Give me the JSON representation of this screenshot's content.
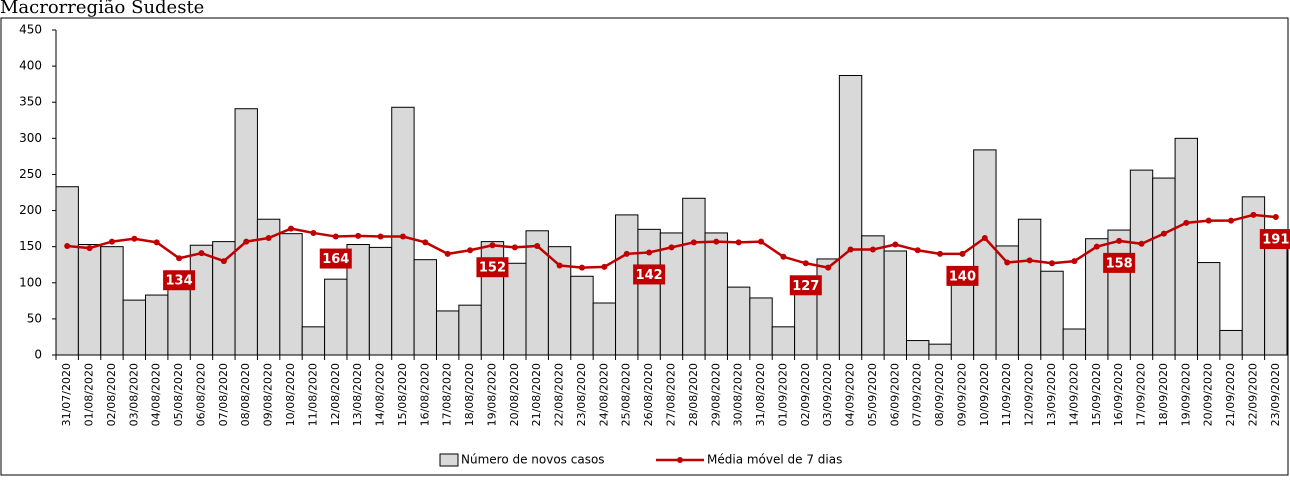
{
  "chart_data": {
    "type": "bar_line",
    "title": "Macrorregião Sudeste",
    "categories": [
      "31/07/2020",
      "01/08/2020",
      "02/08/2020",
      "03/08/2020",
      "04/08/2020",
      "05/08/2020",
      "06/08/2020",
      "07/08/2020",
      "08/08/2020",
      "09/08/2020",
      "10/08/2020",
      "11/08/2020",
      "12/08/2020",
      "13/08/2020",
      "14/08/2020",
      "15/08/2020",
      "16/08/2020",
      "17/08/2020",
      "18/08/2020",
      "19/08/2020",
      "20/08/2020",
      "21/08/2020",
      "22/08/2020",
      "23/08/2020",
      "24/08/2020",
      "25/08/2020",
      "26/08/2020",
      "27/08/2020",
      "28/08/2020",
      "29/08/2020",
      "30/08/2020",
      "31/08/2020",
      "01/09/2020",
      "02/09/2020",
      "03/09/2020",
      "04/09/2020",
      "05/09/2020",
      "06/09/2020",
      "07/09/2020",
      "08/09/2020",
      "09/09/2020",
      "10/09/2020",
      "11/09/2020",
      "12/09/2020",
      "13/09/2020",
      "14/09/2020",
      "15/09/2020",
      "16/09/2020",
      "17/09/2020",
      "18/09/2020",
      "19/09/2020",
      "20/09/2020",
      "21/09/2020",
      "22/09/2020",
      "23/09/2020"
    ],
    "series": [
      {
        "name": "Número de novos casos",
        "color": "#d9d9d9",
        "kind": "bar",
        "values": [
          233,
          153,
          150,
          76,
          83,
          100,
          152,
          157,
          341,
          188,
          168,
          39,
          105,
          153,
          149,
          343,
          132,
          61,
          69,
          157,
          127,
          172,
          150,
          109,
          72,
          194,
          174,
          169,
          217,
          169,
          94,
          79,
          39,
          100,
          133,
          387,
          165,
          144,
          20,
          15,
          120,
          284,
          151,
          188,
          116,
          36,
          161,
          173,
          256,
          245,
          300,
          128,
          34,
          219,
          155
        ]
      },
      {
        "name": "Média móvel de 7 dias",
        "color": "#c00000",
        "kind": "line",
        "values": [
          151,
          148,
          157,
          161,
          156,
          134,
          141,
          130,
          157,
          162,
          175,
          169,
          164,
          165,
          164,
          164,
          156,
          140,
          145,
          152,
          149,
          151,
          124,
          121,
          122,
          140,
          142,
          149,
          156,
          157,
          156,
          157,
          136,
          127,
          121,
          146,
          146,
          153,
          145,
          140,
          140,
          162,
          128,
          131,
          127,
          130,
          150,
          158,
          154,
          168,
          183,
          186,
          186,
          194,
          191
        ]
      }
    ],
    "ylim": [
      0,
      450
    ],
    "yticks": [
      0,
      50,
      100,
      150,
      200,
      250,
      300,
      350,
      400,
      450
    ],
    "legend": "bottom"
  }
}
